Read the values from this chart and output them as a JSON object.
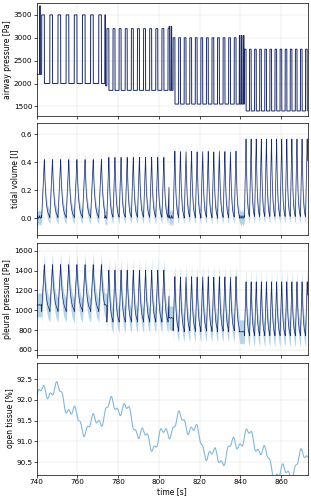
{
  "t_start": 740,
  "t_end": 873,
  "dt": 0.02,
  "dark_blue": "#1b2a6b",
  "light_blue": "#85b8d9",
  "bg_color": "#ffffff",
  "panel1": {
    "ylabel": "airway pressure [Pa]",
    "ylim": [
      1300,
      3750
    ],
    "yticks": [
      1500,
      2000,
      2500,
      3000,
      3500
    ]
  },
  "panel2": {
    "ylabel": "tidal volume [l]",
    "ylim": [
      -0.12,
      0.68
    ],
    "yticks": [
      0.0,
      0.2,
      0.4,
      0.6
    ]
  },
  "panel3": {
    "ylabel": "pleural pressure [Pa]",
    "ylim": [
      550,
      1680
    ],
    "yticks": [
      600,
      800,
      1000,
      1200,
      1400,
      1600
    ]
  },
  "panel4": {
    "ylabel": "open tissue [%]",
    "ylim": [
      90.2,
      92.9
    ],
    "yticks": [
      90.5,
      91.0,
      91.5,
      92.0,
      92.5
    ]
  },
  "xlabel": "time [s]",
  "xlim": [
    740,
    873
  ],
  "xticks": [
    740,
    760,
    780,
    800,
    820,
    840,
    860
  ]
}
